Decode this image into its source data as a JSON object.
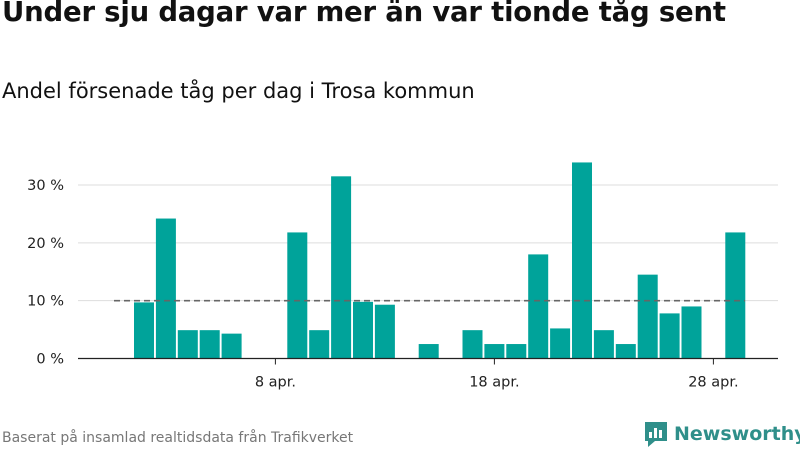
{
  "title": "Under sju dagar var mer än var tionde tåg sent",
  "subtitle": "Andel försenade tåg per dag i Trosa kommun",
  "source": "Baserat på insamlad realtidsdata från Trafikverket",
  "brand": {
    "name": "Newsworthy",
    "color": "#2f8f8a"
  },
  "chart_data": {
    "type": "bar",
    "x": [
      2,
      3,
      4,
      5,
      6,
      7,
      8,
      9,
      10,
      11,
      12,
      13,
      14,
      15,
      16,
      17,
      18,
      19,
      20,
      21,
      22,
      23,
      24,
      25,
      26,
      27,
      28,
      29
    ],
    "values": [
      9.7,
      24.2,
      4.9,
      4.9,
      4.3,
      0,
      0,
      21.8,
      4.9,
      31.5,
      9.8,
      9.3,
      0,
      2.5,
      0,
      4.9,
      2.5,
      2.5,
      18,
      5.2,
      33.9,
      4.9,
      2.5,
      14.5,
      7.8,
      9,
      0,
      21.8
    ],
    "xaxis_ticks": [
      {
        "x": 8,
        "label": "8 apr."
      },
      {
        "x": 18,
        "label": "18 apr."
      },
      {
        "x": 28,
        "label": "28 apr."
      }
    ],
    "yaxis_ticks": [
      {
        "y": 0,
        "label": "0 %"
      },
      {
        "y": 10,
        "label": "10 %"
      },
      {
        "y": 20,
        "label": "20 %"
      },
      {
        "y": 30,
        "label": "30 %"
      }
    ],
    "ylim": [
      0,
      35
    ],
    "reference_line": 10,
    "grid": true,
    "bar_color": "#00a39a",
    "reference_color": "#666666"
  }
}
